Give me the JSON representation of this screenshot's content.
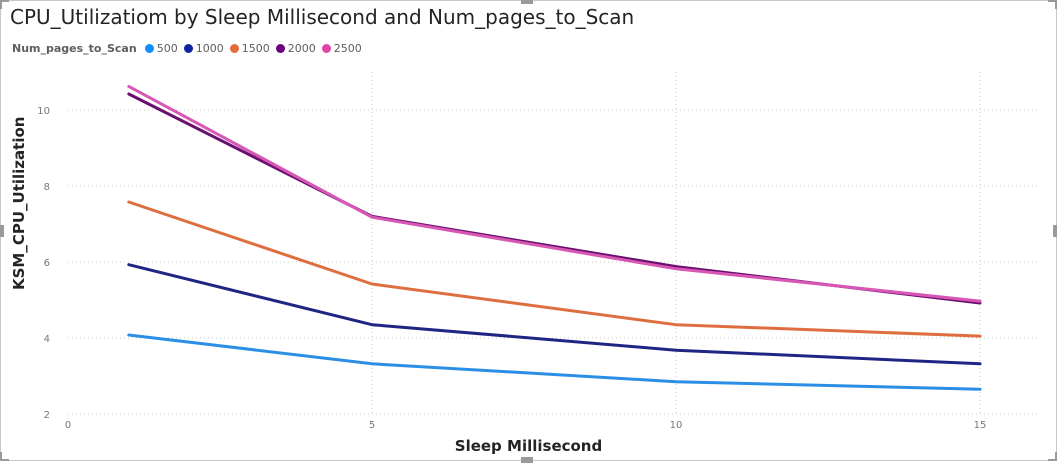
{
  "title": "CPU_Utilizatiom by Sleep Millisecond and Num_pages_to_Scan",
  "legend": {
    "title": "Num_pages_to_Scan",
    "items": [
      {
        "label": "500",
        "color": "#118DFF"
      },
      {
        "label": "1000",
        "color": "#12239E"
      },
      {
        "label": "1500",
        "color": "#E66C37"
      },
      {
        "label": "2000",
        "color": "#6B007B"
      },
      {
        "label": "2500",
        "color": "#E044A7"
      }
    ]
  },
  "chart_data": {
    "type": "line",
    "title": "CPU_Utilizatiom by Sleep Millisecond and Num_pages_to_Scan",
    "xlabel": "Sleep Millisecond",
    "ylabel": "KSM_CPU_Utilization",
    "x": [
      1,
      5,
      10,
      15
    ],
    "xlim": [
      0,
      15.5
    ],
    "ylim": [
      2,
      11
    ],
    "xticks": [
      0,
      5,
      10,
      15
    ],
    "yticks": [
      2,
      4,
      6,
      8,
      10
    ],
    "grid": true,
    "legend_position": "top-left",
    "series": [
      {
        "name": "500",
        "color": "#2C8FE6",
        "values": [
          4.08,
          3.32,
          2.85,
          2.65
        ]
      },
      {
        "name": "1000",
        "color": "#1F2583",
        "values": [
          5.93,
          4.35,
          3.68,
          3.32
        ]
      },
      {
        "name": "1500",
        "color": "#DE6E3F",
        "values": [
          7.58,
          5.42,
          4.35,
          4.05
        ]
      },
      {
        "name": "2000",
        "color": "#6A0F70",
        "values": [
          10.42,
          7.2,
          5.88,
          4.92
        ]
      },
      {
        "name": "2500",
        "color": "#D857B4",
        "values": [
          10.62,
          7.18,
          5.82,
          4.97
        ]
      }
    ]
  }
}
